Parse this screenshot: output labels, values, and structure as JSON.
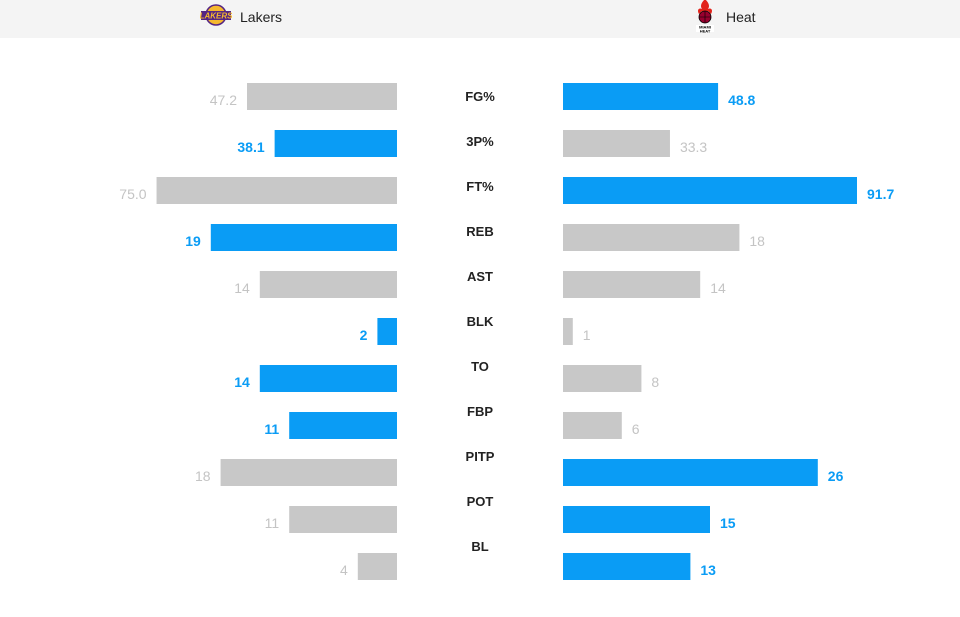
{
  "header": {
    "left_team": {
      "name": "Lakers",
      "logo_icon": "lakers-logo-icon"
    },
    "right_team": {
      "name": "Heat",
      "logo_icon": "heat-logo-icon"
    }
  },
  "colors": {
    "highlight": "#0a9cf5",
    "neutral": "#c8c8c8",
    "neutral_text": "#c4c4c4"
  },
  "chart_data": {
    "type": "bar",
    "categories": [
      "FG%",
      "3P%",
      "FT%",
      "REB",
      "AST",
      "BLK",
      "TO",
      "FBP",
      "PITP",
      "POT",
      "BL"
    ],
    "series": [
      {
        "name": "Lakers",
        "values": [
          47.2,
          38.1,
          75.0,
          19,
          14,
          2,
          14,
          11,
          18,
          11,
          4
        ],
        "labels": [
          "47.2",
          "38.1",
          "75.0",
          "19",
          "14",
          "2",
          "14",
          "11",
          "18",
          "11",
          "4"
        ],
        "highlighted": [
          false,
          true,
          false,
          true,
          false,
          true,
          true,
          true,
          false,
          false,
          false
        ]
      },
      {
        "name": "Heat",
        "values": [
          48.8,
          33.3,
          91.7,
          18,
          14,
          1,
          8,
          6,
          26,
          15,
          13
        ],
        "labels": [
          "48.8",
          "33.3",
          "91.7",
          "18",
          "14",
          "1",
          "8",
          "6",
          "26",
          "15",
          "13"
        ],
        "highlighted": [
          true,
          false,
          true,
          false,
          false,
          false,
          false,
          false,
          true,
          true,
          true
        ]
      }
    ]
  }
}
